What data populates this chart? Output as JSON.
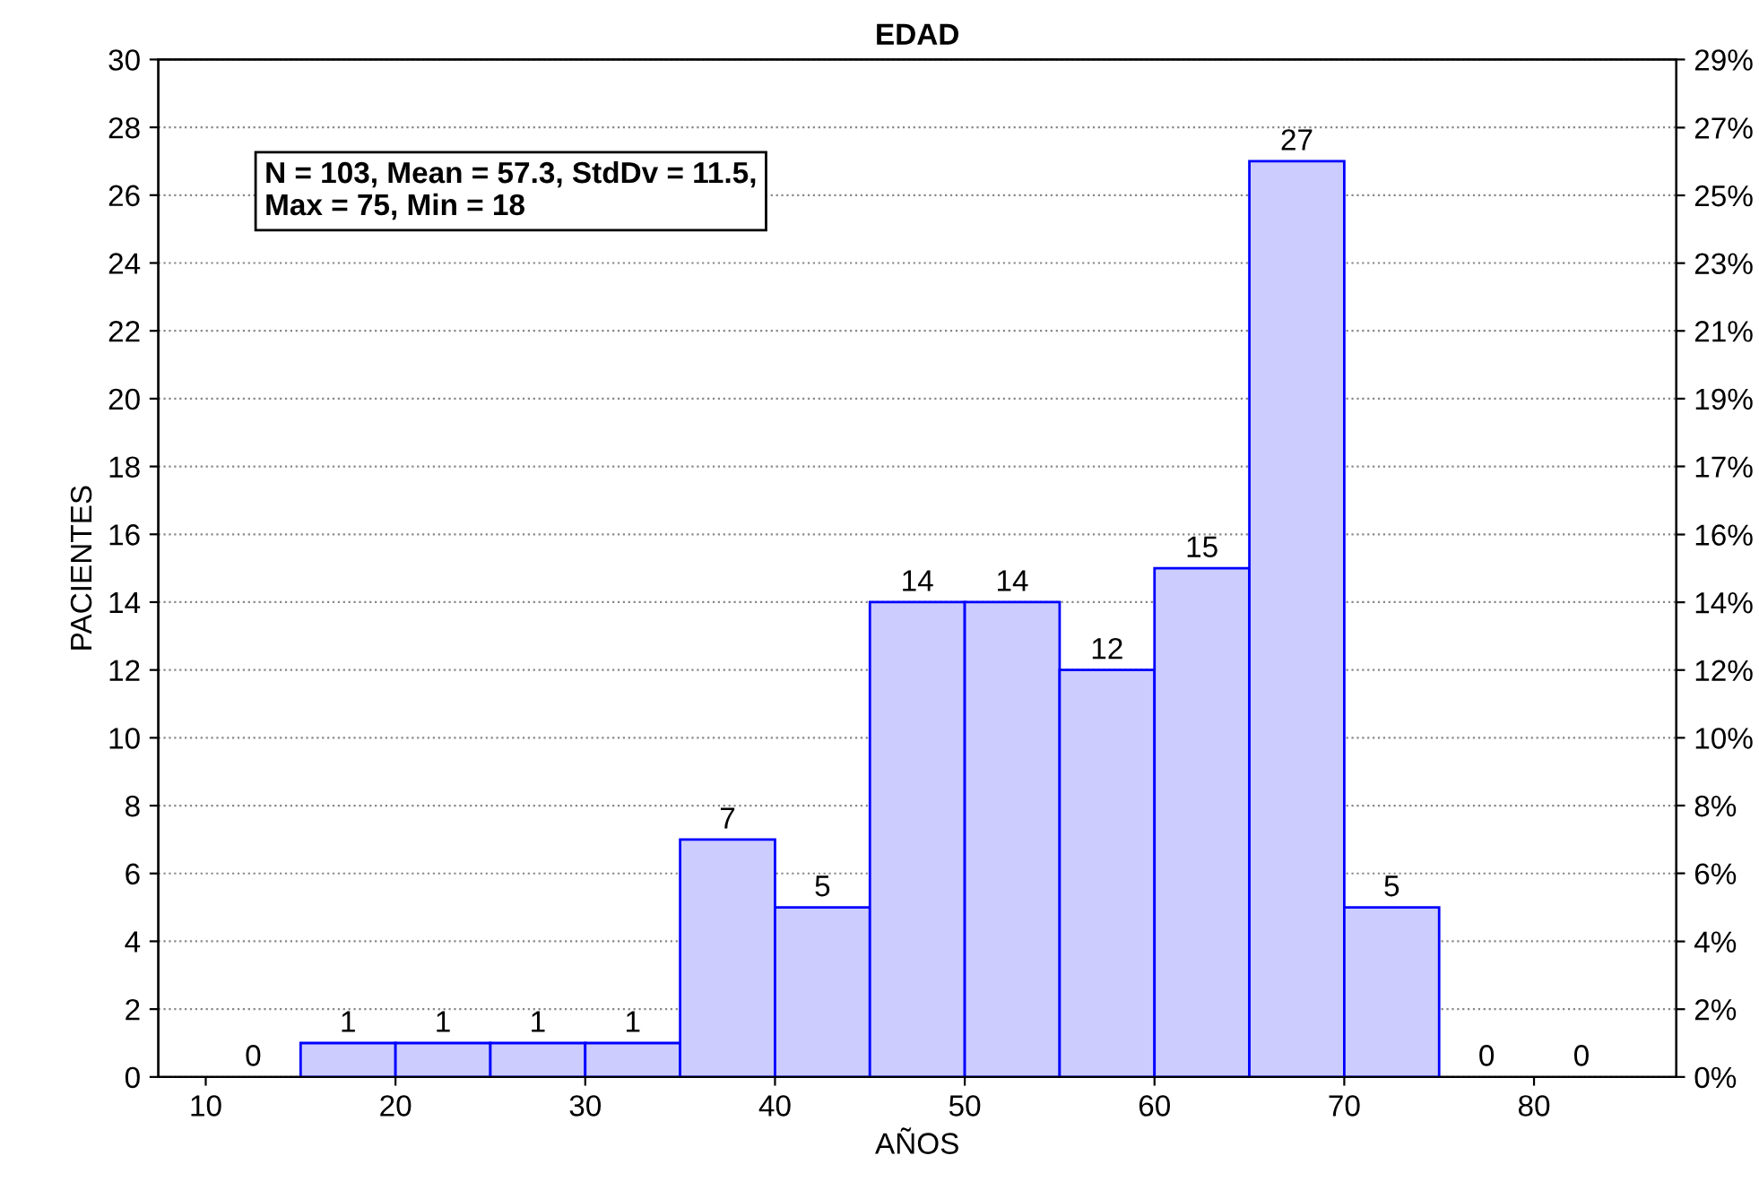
{
  "chart_data": {
    "type": "histogram",
    "title": "EDAD",
    "xlabel": "AÑOS",
    "ylabel": "PACIENTES",
    "bins": [
      10,
      15,
      20,
      25,
      30,
      35,
      40,
      45,
      50,
      55,
      60,
      65,
      70,
      75,
      80,
      85
    ],
    "values": [
      0,
      1,
      1,
      1,
      1,
      7,
      5,
      14,
      14,
      12,
      15,
      27,
      5,
      0,
      0
    ],
    "color": "#ccccff",
    "data_labels": true,
    "grid": "y",
    "xlim": [
      7.5,
      87.5
    ],
    "xticks": [
      10,
      20,
      30,
      40,
      50,
      60,
      70,
      80
    ],
    "ylim": [
      0,
      30
    ],
    "yticks": [
      0,
      2,
      4,
      6,
      8,
      10,
      12,
      14,
      16,
      18,
      20,
      22,
      24,
      26,
      28,
      30
    ],
    "y2lim": [
      0,
      29.13
    ],
    "y2ticks": [
      {
        "value": 0,
        "label": "0%"
      },
      {
        "value": 1.94,
        "label": "2%"
      },
      {
        "value": 3.88,
        "label": "4%"
      },
      {
        "value": 5.83,
        "label": "6%"
      },
      {
        "value": 7.77,
        "label": "8%"
      },
      {
        "value": 9.71,
        "label": "10%"
      },
      {
        "value": 11.65,
        "label": "12%"
      },
      {
        "value": 13.59,
        "label": "14%"
      },
      {
        "value": 15.53,
        "label": "16%"
      },
      {
        "value": 17.48,
        "label": "17%"
      },
      {
        "value": 19.42,
        "label": "19%"
      },
      {
        "value": 21.36,
        "label": "21%"
      },
      {
        "value": 23.3,
        "label": "23%"
      },
      {
        "value": 25.24,
        "label": "25%"
      },
      {
        "value": 27.18,
        "label": "27%"
      },
      {
        "value": 29.13,
        "label": "29%"
      }
    ],
    "annotations": [
      "N = 103, Mean = 57.3, StdDv = 11.5,\nMax = 75, Min = 18"
    ]
  }
}
